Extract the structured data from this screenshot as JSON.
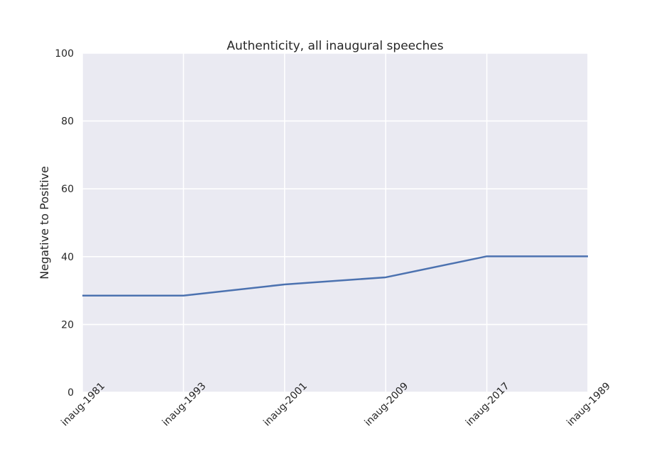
{
  "chart_data": {
    "type": "line",
    "title": "Authenticity, all inaugural speeches",
    "xlabel": "",
    "ylabel": "Negative to Positive",
    "ylim": [
      0,
      100
    ],
    "yticks": [
      0,
      20,
      40,
      60,
      80,
      100
    ],
    "categories": [
      "inaug-1981",
      "inaug-1993",
      "inaug-2001",
      "inaug-2009",
      "inaug-2017",
      "inaug-1989"
    ],
    "series": [
      {
        "values": [
          28.5,
          28.5,
          31.8,
          33.9,
          40.1,
          40.1
        ]
      }
    ],
    "grid": true,
    "colors": {
      "line": "#4c72b0",
      "plot_bg": "#eaeaf2",
      "grid": "#ffffff"
    }
  }
}
